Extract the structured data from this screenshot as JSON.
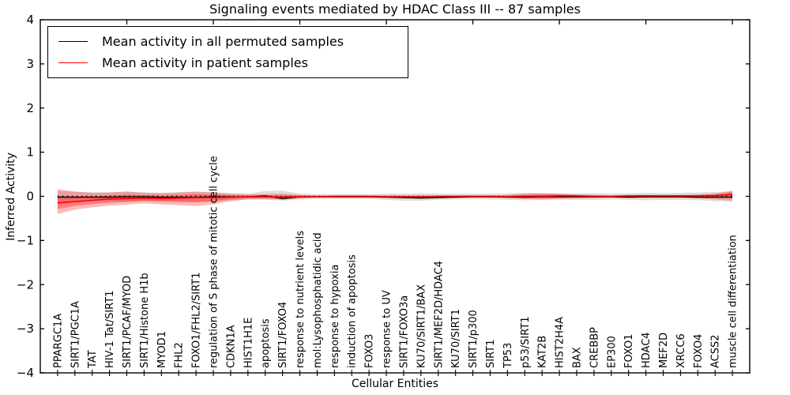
{
  "figure": {
    "title": "Signaling events mediated by HDAC Class III -- 87 samples",
    "xlabel": "Cellular Entities",
    "ylabel": "Inferred Activity",
    "legend": {
      "position": "upper left",
      "entries": [
        {
          "label": "Mean activity in all permuted samples",
          "color": "#000000"
        },
        {
          "label": "Mean activity in patient samples",
          "color": "#ff0000"
        }
      ]
    }
  },
  "chart_data": {
    "type": "line",
    "title": "Signaling events mediated by HDAC Class III -- 87 samples",
    "xlabel": "Cellular Entities",
    "ylabel": "Inferred Activity",
    "ylim": [
      -4,
      4
    ],
    "ytick_values": [
      4,
      3,
      2,
      1,
      0,
      -1,
      -2,
      -3,
      -4
    ],
    "ytick_labels": [
      "4",
      "3",
      "2",
      "1",
      "0",
      "−1",
      "−2",
      "−3",
      "−4"
    ],
    "x_major_tick_indices": [
      4,
      9,
      14,
      19,
      24,
      29,
      34,
      39
    ],
    "grid": false,
    "legend_position": "upper left",
    "zero_reference_line": 0,
    "colors": {
      "permuted_line": "#000000",
      "patient_line": "#ff0000",
      "permuted_band": "rgba(0,0,0,0.13)",
      "patient_band_outer": "rgba(255,0,0,0.28)",
      "patient_band_inner": "rgba(255,0,0,0.32)",
      "axis": "#000000"
    },
    "categories": [
      "PPARGC1A",
      "SIRT1/PGC1A",
      "TAT",
      "HIV-1 Tat/SIRT1",
      "SIRT1/PCAF/MYOD",
      "SIRT1/Histone H1b",
      "MYOD1",
      "FHL2",
      "FOXO1/FHL2/SIRT1",
      "regulation of S phase of mitotic cell cycle",
      "CDKN1A",
      "HIST1H1E",
      "apoptosis",
      "SIRT1/FOXO4",
      "response to nutrient levels",
      "mol:Lysophosphatidic acid",
      "response to hypoxia",
      "induction of apoptosis",
      "FOXO3",
      "response to UV",
      "SIRT1/FOXO3a",
      "KU70/SIRT1/BAX",
      "SIRT1/MEF2D/HDAC4",
      "KU70/SIRT1",
      "SIRT1/p300",
      "SIRT1",
      "TP53",
      "p53/SIRT1",
      "KAT2B",
      "HIST2H4A",
      "BAX",
      "CREBBP",
      "EP300",
      "FOXO1",
      "HDAC4",
      "MEF2D",
      "XRCC6",
      "FOXO4",
      "ACSS2",
      "muscle cell differentiation"
    ],
    "series": [
      {
        "name": "Mean activity in all permuted samples",
        "color": "#000000",
        "values": [
          -0.02,
          -0.02,
          -0.02,
          -0.02,
          -0.01,
          -0.01,
          -0.02,
          -0.02,
          -0.02,
          -0.01,
          -0.01,
          -0.01,
          0.01,
          -0.05,
          -0.01,
          -0.01,
          -0.01,
          -0.01,
          -0.01,
          -0.02,
          -0.03,
          -0.04,
          -0.03,
          -0.02,
          -0.01,
          -0.01,
          -0.02,
          -0.02,
          -0.01,
          -0.01,
          -0.01,
          -0.01,
          -0.01,
          -0.02,
          -0.01,
          -0.01,
          -0.01,
          -0.02,
          -0.02,
          -0.02
        ]
      },
      {
        "name": "Mean activity in patient samples",
        "color": "#ff0000",
        "values": [
          -0.15,
          -0.12,
          -0.09,
          -0.06,
          -0.05,
          -0.04,
          -0.05,
          -0.04,
          -0.03,
          -0.03,
          -0.02,
          -0.01,
          -0.01,
          -0.02,
          -0.01,
          -0.01,
          0.0,
          0.0,
          0.0,
          -0.01,
          -0.01,
          -0.01,
          0.0,
          0.0,
          0.0,
          0.0,
          -0.01,
          0.0,
          0.0,
          0.01,
          0.01,
          0.0,
          0.0,
          0.01,
          0.01,
          0.01,
          0.01,
          0.01,
          0.02,
          0.04
        ]
      }
    ],
    "bands": [
      {
        "name": "permuted-activity-range",
        "upper": [
          0.12,
          0.1,
          0.09,
          0.09,
          0.1,
          0.09,
          0.08,
          0.09,
          0.1,
          0.09,
          0.07,
          0.06,
          0.12,
          0.13,
          0.06,
          0.05,
          0.05,
          0.05,
          0.05,
          0.06,
          0.06,
          0.07,
          0.06,
          0.06,
          0.06,
          0.06,
          0.07,
          0.08,
          0.07,
          0.06,
          0.07,
          0.07,
          0.06,
          0.07,
          0.08,
          0.07,
          0.08,
          0.09,
          0.1,
          0.11
        ],
        "lower": [
          -0.14,
          -0.12,
          -0.11,
          -0.11,
          -0.12,
          -0.1,
          -0.1,
          -0.11,
          -0.13,
          -0.12,
          -0.09,
          -0.07,
          -0.08,
          -0.1,
          -0.07,
          -0.06,
          -0.06,
          -0.06,
          -0.06,
          -0.08,
          -0.1,
          -0.1,
          -0.08,
          -0.07,
          -0.07,
          -0.07,
          -0.08,
          -0.09,
          -0.08,
          -0.07,
          -0.08,
          -0.08,
          -0.07,
          -0.08,
          -0.09,
          -0.08,
          -0.08,
          -0.09,
          -0.11,
          -0.12
        ]
      },
      {
        "name": "patient-activity-range",
        "upper": [
          0.16,
          0.11,
          0.08,
          0.09,
          0.11,
          0.08,
          0.07,
          0.09,
          0.11,
          0.09,
          0.06,
          0.04,
          0.05,
          0.06,
          0.03,
          0.02,
          0.02,
          0.02,
          0.02,
          0.02,
          0.02,
          0.02,
          0.02,
          0.02,
          0.02,
          0.02,
          0.03,
          0.06,
          0.07,
          0.06,
          0.04,
          0.03,
          0.02,
          0.03,
          0.03,
          0.03,
          0.03,
          0.04,
          0.06,
          0.13
        ],
        "lower": [
          -0.4,
          -0.3,
          -0.25,
          -0.21,
          -0.19,
          -0.16,
          -0.18,
          -0.2,
          -0.22,
          -0.18,
          -0.11,
          -0.07,
          -0.06,
          -0.08,
          -0.05,
          -0.03,
          -0.03,
          -0.03,
          -0.03,
          -0.04,
          -0.04,
          -0.04,
          -0.03,
          -0.03,
          -0.03,
          -0.03,
          -0.04,
          -0.06,
          -0.07,
          -0.06,
          -0.05,
          -0.04,
          -0.03,
          -0.04,
          -0.04,
          -0.04,
          -0.04,
          -0.05,
          -0.07,
          -0.1
        ]
      }
    ]
  }
}
